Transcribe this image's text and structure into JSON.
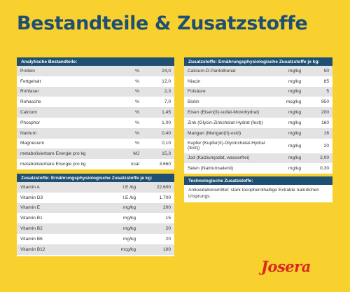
{
  "title": "Bestandteile & Zusatzstoffe",
  "analytical": {
    "heading": "Analytische Bestandteile:",
    "rows": [
      {
        "name": "Protein",
        "unit": "%",
        "value": "24,0"
      },
      {
        "name": "Fettgehalt",
        "unit": "%",
        "value": "12,0"
      },
      {
        "name": "Rohfaser",
        "unit": "%",
        "value": "2,3"
      },
      {
        "name": "Rohasche",
        "unit": "%",
        "value": "7,0"
      },
      {
        "name": "Calcium",
        "unit": "%",
        "value": "1,45"
      },
      {
        "name": "Phosphor",
        "unit": "%",
        "value": "1,00"
      },
      {
        "name": "Natrium",
        "unit": "%",
        "value": "0,40"
      },
      {
        "name": "Magnesium",
        "unit": "%",
        "value": "0,10"
      },
      {
        "name": "metabolisierbare Energie pro kg",
        "unit": "MJ",
        "value": "15,3"
      },
      {
        "name": "metabolisierbare Energie pro kg",
        "unit": "kcal",
        "value": "3.660"
      }
    ]
  },
  "vitamins": {
    "heading": "Zusatzstoffe: Ernährungsphysiologische Zusatzstoffe je kg:",
    "rows": [
      {
        "name": "Vitamin A",
        "unit": "I.E./kg",
        "value": "22.600"
      },
      {
        "name": "Vitamin D3",
        "unit": "I.E./kg",
        "value": "1.700"
      },
      {
        "name": "Vitamin E",
        "unit": "mg/kg",
        "value": "200"
      },
      {
        "name": "Vitamin B1",
        "unit": "mg/kg",
        "value": "15"
      },
      {
        "name": "Vitamin B2",
        "unit": "mg/kg",
        "value": "20"
      },
      {
        "name": "Vitamin B6",
        "unit": "mg/kg",
        "value": "20"
      },
      {
        "name": "Vitamin B12",
        "unit": "mcg/kg",
        "value": "100"
      }
    ]
  },
  "minerals": {
    "heading": "Zusatzstoffe: Ernährungsphysiologische Zusatzstoffe je kg:",
    "rows": [
      {
        "name": "Calcium-D-Pantothenat",
        "unit": "mg/kg",
        "value": "50"
      },
      {
        "name": "Niacin",
        "unit": "mg/kg",
        "value": "85"
      },
      {
        "name": "Folsäure",
        "unit": "mg/kg",
        "value": "5"
      },
      {
        "name": "Biotin",
        "unit": "mcg/kg",
        "value": "950"
      },
      {
        "name": "Eisen (Eisen(II)-sulfat-Monohydrat)",
        "unit": "mg/kg",
        "value": "200"
      },
      {
        "name": "Zink (Glycin-Zinkchelat-Hydrat (fest))",
        "unit": "mg/kg",
        "value": "160"
      },
      {
        "name": "Mangan (Mangan(II)-oxid)",
        "unit": "mg/kg",
        "value": "16"
      },
      {
        "name": "Kupfer (Kupfer(II)-Glycinchelat-Hydrat (fest))",
        "unit": "mg/kg",
        "value": "20"
      },
      {
        "name": "Jod (Kalziumjodat, wasserfrei)",
        "unit": "mg/kg",
        "value": "2,00"
      },
      {
        "name": "Selen (Natriumselenit)",
        "unit": "mg/kg",
        "value": "0,30"
      }
    ]
  },
  "technical": {
    "heading": "Technologische Zusatzstoffe:",
    "text": "Antioxidationsmittel: stark tocopherolhaltige Extrakte natürlichen Ursprungs."
  },
  "brand": {
    "logo_text": "Josera",
    "color": "#D92A1E"
  },
  "colors": {
    "background": "#F9D12F",
    "header": "#1F4F72",
    "row_shaded": "#E3E3E3"
  }
}
